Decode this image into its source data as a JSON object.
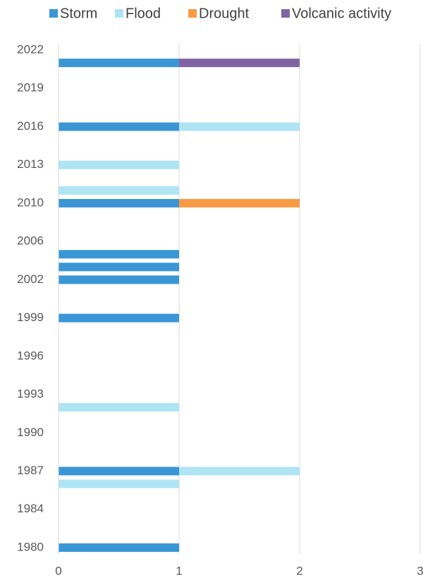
{
  "chart_data": {
    "type": "stacked_barh",
    "categories": [
      "2022",
      null,
      null,
      "2019",
      null,
      null,
      "2016",
      null,
      null,
      "2013",
      null,
      null,
      "2010",
      null,
      null,
      "2006",
      null,
      null,
      "2002",
      null,
      null,
      "1999",
      null,
      null,
      "1996",
      null,
      null,
      "1993",
      null,
      null,
      "1990",
      null,
      null,
      "1987",
      null,
      null,
      "1984",
      null,
      null,
      "1980"
    ],
    "series": [
      {
        "name": "Storm",
        "color": "#3a96d4",
        "values": [
          0,
          1,
          0,
          0,
          0,
          0,
          1,
          0,
          0,
          0,
          0,
          0,
          1,
          0,
          0,
          0,
          1,
          1,
          1,
          0,
          0,
          1,
          0,
          0,
          0,
          0,
          0,
          0,
          0,
          0,
          0,
          0,
          0,
          1,
          0,
          0,
          0,
          0,
          0,
          1
        ]
      },
      {
        "name": "Flood",
        "color": "#aee4f4",
        "values": [
          0,
          0,
          0,
          0,
          0,
          0,
          1,
          0,
          0,
          1,
          0,
          1,
          0,
          0,
          0,
          0,
          0,
          0,
          0,
          0,
          0,
          0,
          0,
          0,
          0,
          0,
          0,
          0,
          1,
          0,
          0,
          0,
          0,
          1,
          1,
          0,
          0,
          0,
          0,
          0
        ]
      },
      {
        "name": "Drought",
        "color": "#f79a44",
        "values": [
          0,
          0,
          0,
          0,
          0,
          0,
          0,
          0,
          0,
          0,
          0,
          0,
          1,
          0,
          0,
          0,
          0,
          0,
          0,
          0,
          0,
          0,
          0,
          0,
          0,
          0,
          0,
          0,
          0,
          0,
          0,
          0,
          0,
          0,
          0,
          0,
          0,
          0,
          0,
          0
        ]
      },
      {
        "name": "Volcanic activity",
        "color": "#8064a2",
        "values": [
          0,
          1,
          0,
          0,
          0,
          0,
          0,
          0,
          0,
          0,
          0,
          0,
          0,
          0,
          0,
          0,
          0,
          0,
          0,
          0,
          0,
          0,
          0,
          0,
          0,
          0,
          0,
          0,
          0,
          0,
          0,
          0,
          0,
          0,
          0,
          0,
          0,
          0,
          0,
          0
        ]
      }
    ],
    "xlim": [
      0,
      3
    ],
    "xticks": [
      0,
      1,
      2,
      3
    ],
    "grid": true,
    "legend": "top"
  }
}
